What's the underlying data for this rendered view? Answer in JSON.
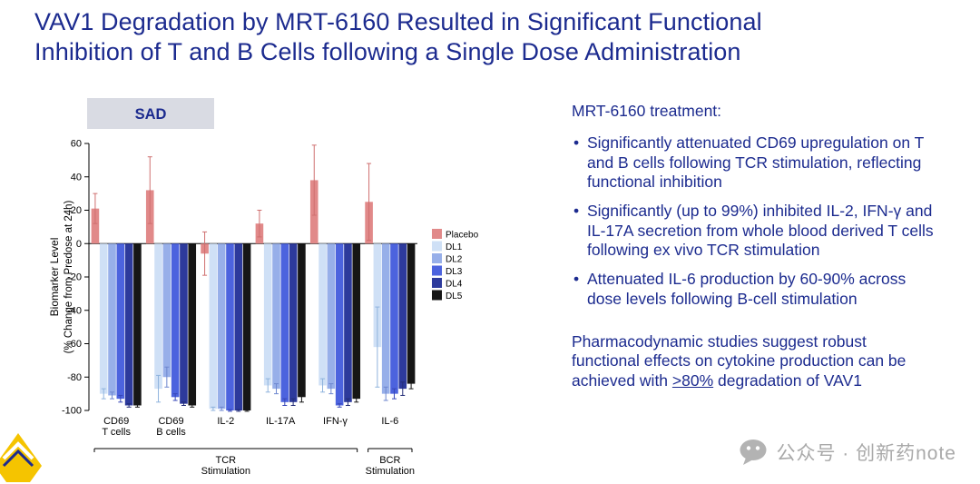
{
  "colors": {
    "title_text": "#1c2b8f",
    "body_text": "#1c2b8f",
    "sad_box_bg": "#d9dbe3",
    "axis": "#000000",
    "watermark": "#a9a9a9",
    "logo_yellow": "#f5c400"
  },
  "slide": {
    "title_lines": [
      "VAV1 Degradation by MRT-6160 Resulted in Significant Functional",
      "Inhibition of T and B Cells following a Single Dose Administration"
    ]
  },
  "chart_data": {
    "type": "bar",
    "panel_label": "SAD",
    "ylabel_lines": [
      "Biomarker Level",
      "(% Change from Predose at 24h)"
    ],
    "ylim": [
      -100,
      60
    ],
    "ytick_step": 20,
    "grid": "off",
    "legend_position": "right",
    "categories": [
      [
        "CD69",
        "T cells"
      ],
      [
        "CD69",
        "B cells"
      ],
      [
        "IL-2"
      ],
      [
        "IL-17A"
      ],
      [
        "IFN-γ"
      ],
      [
        "IL-6"
      ]
    ],
    "series": [
      {
        "name": "Placebo",
        "color": "#e18989",
        "err_color": "#cf6f6f",
        "values": [
          21,
          32,
          -6,
          12,
          38,
          25
        ],
        "errors": [
          9,
          20,
          13,
          8,
          21,
          23
        ]
      },
      {
        "name": "DL1",
        "color": "#cfe0f6",
        "err_color": "#8fb3dd",
        "values": [
          -90,
          -87,
          -99,
          -85,
          -85,
          -62
        ],
        "errors": [
          3,
          8,
          1,
          4,
          4,
          24
        ]
      },
      {
        "name": "DL2",
        "color": "#97afe9",
        "err_color": "#6e87cf",
        "values": [
          -91,
          -80,
          -99,
          -87,
          -87,
          -90
        ],
        "errors": [
          2,
          6,
          1,
          3,
          3,
          4
        ]
      },
      {
        "name": "DL3",
        "color": "#4c63de",
        "err_color": "#3747b8",
        "values": [
          -93,
          -92,
          -100,
          -95,
          -97,
          -90
        ],
        "errors": [
          2,
          2,
          0.5,
          2,
          1,
          3
        ]
      },
      {
        "name": "DL4",
        "color": "#2d3a9c",
        "err_color": "#232d78",
        "values": [
          -97,
          -96,
          -100,
          -95,
          -95,
          -87
        ],
        "errors": [
          1,
          1,
          0.5,
          2,
          2,
          4
        ]
      },
      {
        "name": "DL5",
        "color": "#161616",
        "err_color": "#161616",
        "values": [
          -97,
          -97,
          -100,
          -92,
          -93,
          -84
        ],
        "errors": [
          1,
          1,
          0.5,
          3,
          2,
          3
        ]
      }
    ],
    "group_brackets": [
      {
        "label_lines": [
          "TCR",
          "Stimulation"
        ],
        "from": 0,
        "to": 4
      },
      {
        "label_lines": [
          "BCR",
          "Stimulation"
        ],
        "from": 5,
        "to": 5
      }
    ]
  },
  "right_panel": {
    "heading": "MRT-6160 treatment:",
    "bullets": [
      "Significantly attenuated CD69 upregulation on T and B cells following TCR stimulation, reflecting functional inhibition",
      "Significantly (up to 99%) inhibited IL-2, IFN-γ and IL-17A secretion from whole blood derived T cells following ex vivo TCR stimulation",
      "Attenuated IL-6 production by 60-90% across dose levels following B-cell stimulation"
    ],
    "footnote_parts": {
      "before": "Pharmacodynamic studies suggest robust functional effects on cytokine production can be achieved with ",
      "underlined": ">80%",
      "after": " degradation of VAV1"
    }
  },
  "watermark": {
    "text": "公众号 · 创新药note"
  }
}
